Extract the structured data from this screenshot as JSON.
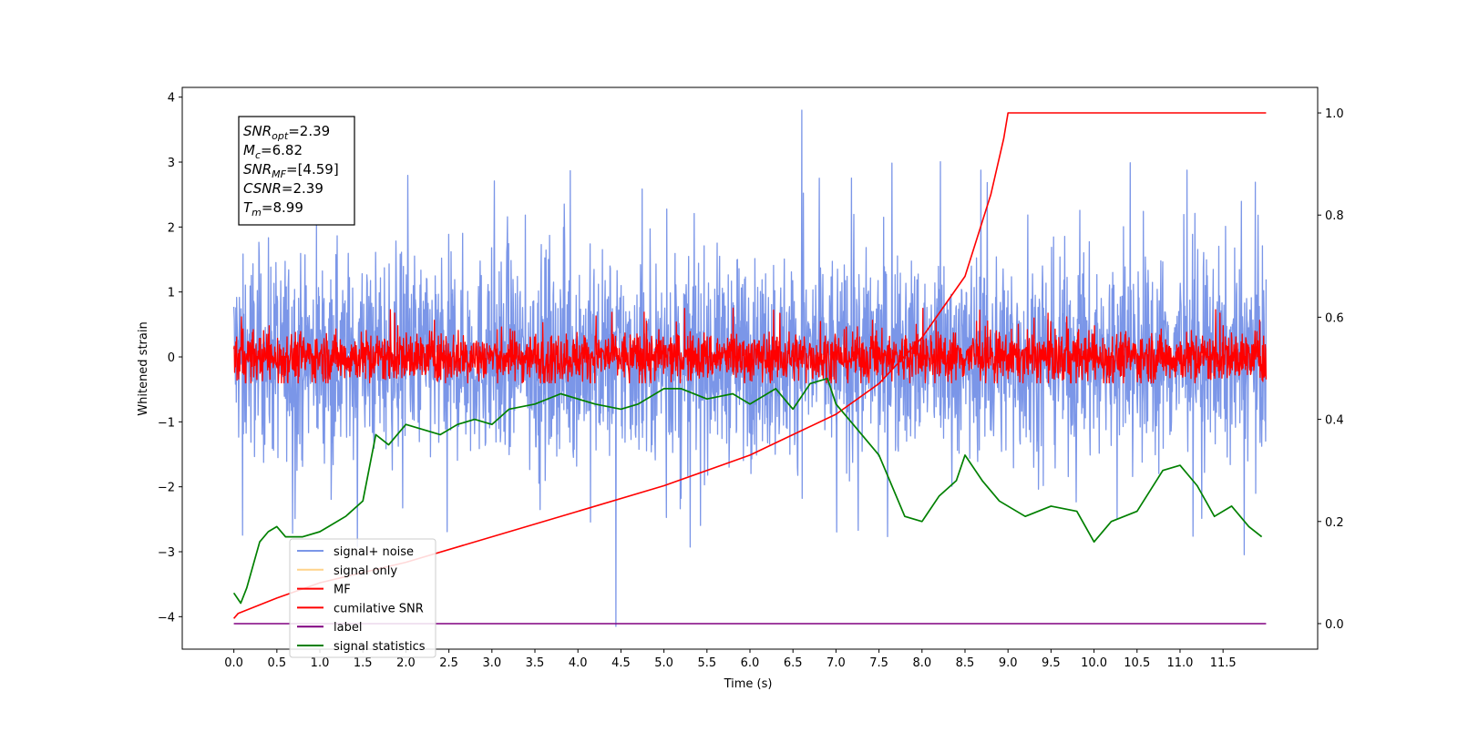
{
  "chart_data": {
    "type": "line",
    "xlabel": "Time (s)",
    "ylabel": "Whitened strain",
    "xlim": [
      -0.6,
      12.6
    ],
    "ylim": [
      -4.5,
      4.15
    ],
    "y2lim": [
      -0.05,
      1.05
    ],
    "xticks": [
      "0.0",
      "0.5",
      "1.0",
      "1.5",
      "2.0",
      "2.5",
      "3.0",
      "3.5",
      "4.0",
      "4.5",
      "5.0",
      "5.5",
      "6.0",
      "6.5",
      "7.0",
      "7.5",
      "8.0",
      "8.5",
      "9.0",
      "9.5",
      "10.0",
      "10.5",
      "11.0",
      "11.5"
    ],
    "yticks": [
      "4",
      "3",
      "2",
      "1",
      "0",
      "−1",
      "−2",
      "−3",
      "−4"
    ],
    "y2ticks": [
      "1.0",
      "0.8",
      "0.6",
      "0.4",
      "0.2",
      "0.0"
    ],
    "annotation": [
      {
        "base": "SNR",
        "sub": "opt",
        "rest": "=2.39"
      },
      {
        "base": "M",
        "sub": "c",
        "rest": "=6.82"
      },
      {
        "base": "SNR",
        "sub": "MF",
        "rest": "=[4.59]"
      },
      {
        "base": "CSNR",
        "sub": "",
        "rest": "=2.39"
      },
      {
        "base": "T",
        "sub": "m",
        "rest": "=8.99"
      }
    ],
    "legend": [
      {
        "label": "signal+ noise",
        "color": "#7b96e8"
      },
      {
        "label": "signal only",
        "color": "#ffd38a"
      },
      {
        "label": "MF",
        "color": "#ff0000"
      },
      {
        "label": "cumilative SNR",
        "color": "#ff0000"
      },
      {
        "label": "label",
        "color": "#800080"
      },
      {
        "label": "signal statistics",
        "color": "#008000"
      }
    ],
    "legend_position": "lower-left",
    "series": [
      {
        "name": "signal+ noise",
        "axis": "left",
        "kind": "noise",
        "x_range": [
          0.0,
          12.0
        ],
        "center": 0.0,
        "envelope": 1.8,
        "max_peak": 3.8,
        "min_peak": -4.15,
        "color": "#7b96e8"
      },
      {
        "name": "MF",
        "axis": "left",
        "kind": "noise",
        "x_range": [
          0.0,
          12.0
        ],
        "center": 0.0,
        "envelope": 0.45,
        "max_peak": 0.95,
        "min_peak": -0.4,
        "color": "#ff0000"
      },
      {
        "name": "cumilative SNR",
        "axis": "right",
        "color": "#ff0000",
        "x": [
          0.0,
          0.05,
          0.5,
          1.0,
          1.5,
          2.0,
          3.0,
          4.0,
          5.0,
          6.0,
          6.5,
          7.0,
          7.5,
          8.0,
          8.5,
          8.8,
          8.95,
          9.0,
          11.5,
          12.0
        ],
        "y": [
          0.01,
          0.02,
          0.05,
          0.08,
          0.1,
          0.12,
          0.17,
          0.22,
          0.27,
          0.33,
          0.37,
          0.41,
          0.47,
          0.56,
          0.68,
          0.84,
          0.95,
          1.0,
          1.0,
          1.0
        ]
      },
      {
        "name": "label",
        "axis": "right",
        "color": "#800080",
        "x": [
          0.0,
          12.0
        ],
        "y": [
          0.0,
          0.0
        ]
      },
      {
        "name": "signal statistics",
        "axis": "right",
        "color": "#008000",
        "x": [
          0.0,
          0.08,
          0.15,
          0.3,
          0.4,
          0.5,
          0.6,
          0.8,
          1.0,
          1.1,
          1.3,
          1.5,
          1.65,
          1.8,
          2.0,
          2.2,
          2.4,
          2.6,
          2.8,
          3.0,
          3.2,
          3.5,
          3.8,
          4.0,
          4.2,
          4.5,
          4.7,
          5.0,
          5.2,
          5.5,
          5.8,
          6.0,
          6.3,
          6.5,
          6.7,
          6.9,
          7.0,
          7.2,
          7.5,
          7.8,
          8.0,
          8.2,
          8.4,
          8.5,
          8.7,
          8.9,
          9.2,
          9.5,
          9.8,
          10.0,
          10.2,
          10.5,
          10.8,
          11.0,
          11.2,
          11.4,
          11.6,
          11.8,
          11.95
        ],
        "y": [
          0.06,
          0.04,
          0.07,
          0.16,
          0.18,
          0.19,
          0.17,
          0.17,
          0.18,
          0.19,
          0.21,
          0.24,
          0.37,
          0.35,
          0.39,
          0.38,
          0.37,
          0.39,
          0.4,
          0.39,
          0.42,
          0.43,
          0.45,
          0.44,
          0.43,
          0.42,
          0.43,
          0.46,
          0.46,
          0.44,
          0.45,
          0.43,
          0.46,
          0.42,
          0.47,
          0.48,
          0.43,
          0.39,
          0.33,
          0.21,
          0.2,
          0.25,
          0.28,
          0.33,
          0.28,
          0.24,
          0.21,
          0.23,
          0.22,
          0.16,
          0.2,
          0.22,
          0.3,
          0.31,
          0.27,
          0.21,
          0.23,
          0.19,
          0.17
        ]
      }
    ]
  }
}
